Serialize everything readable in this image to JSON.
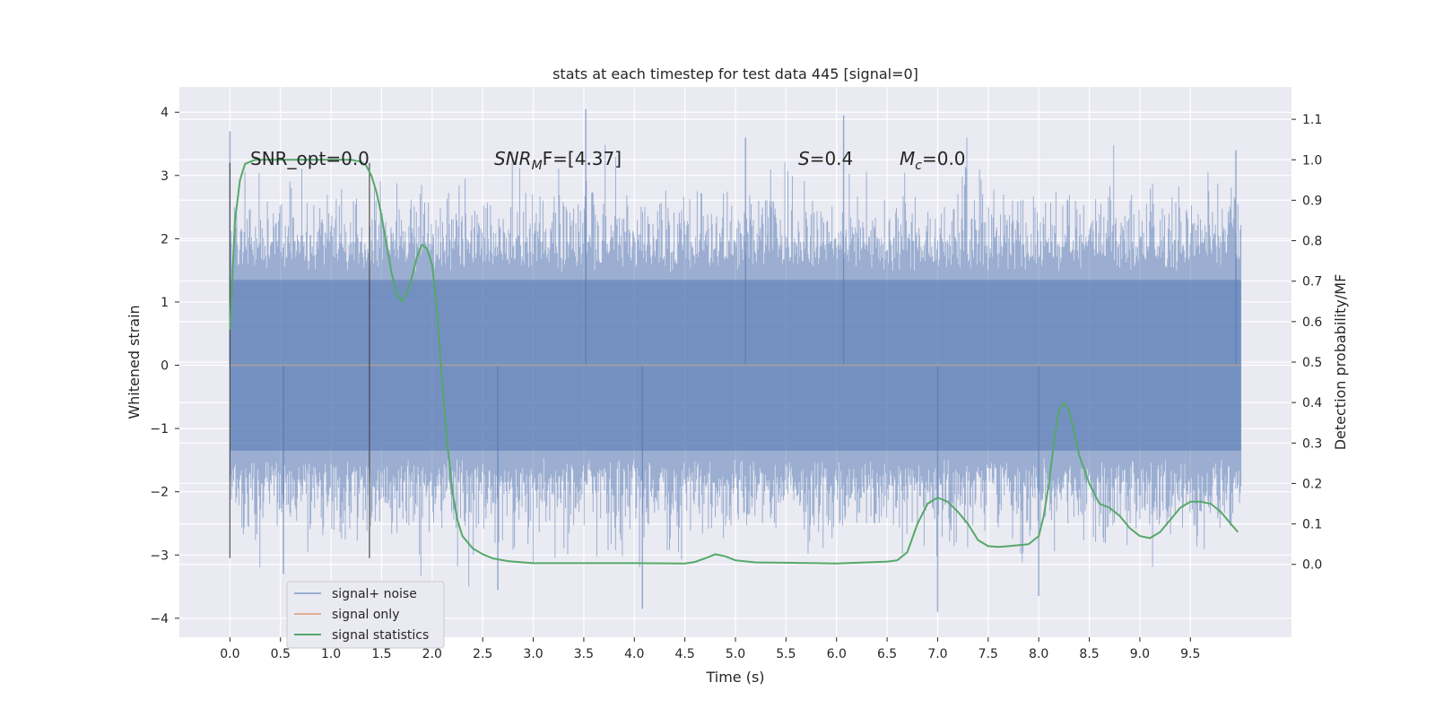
{
  "chart_data": {
    "type": "line",
    "title": "stats at each timestep for test data 445 [signal=0]",
    "xlabel": "Time (s)",
    "ylabel": "Whitened strain",
    "y2label": "Detection probability/MF",
    "xlim": [
      -0.5,
      10.5
    ],
    "ylim": [
      -4.3,
      4.4
    ],
    "y2lim": [
      -0.18,
      1.18
    ],
    "xticks": [
      0.0,
      0.5,
      1.0,
      1.5,
      2.0,
      2.5,
      3.0,
      3.5,
      4.0,
      4.5,
      5.0,
      5.5,
      6.0,
      6.5,
      7.0,
      7.5,
      8.0,
      8.5,
      9.0,
      9.5
    ],
    "xtick_labels": [
      "0.0",
      "0.5",
      "1.0",
      "1.5",
      "2.0",
      "2.5",
      "3.0",
      "3.5",
      "4.0",
      "4.5",
      "5.0",
      "5.5",
      "6.0",
      "6.5",
      "7.0",
      "7.5",
      "8.0",
      "8.5",
      "9.0",
      "9.5"
    ],
    "yticks": [
      4,
      3,
      2,
      1,
      0,
      -1,
      -2,
      -3,
      -4
    ],
    "ytick_labels": [
      "4",
      "3",
      "2",
      "1",
      "0",
      "−1",
      "−2",
      "−3",
      "−4"
    ],
    "y2ticks": [
      1.1,
      1.0,
      0.9,
      0.8,
      0.7,
      0.6,
      0.5,
      0.4,
      0.3,
      0.2,
      0.1,
      0.0
    ],
    "y2tick_labels": [
      "1.1",
      "1.0",
      "0.9",
      "0.8",
      "0.7",
      "0.6",
      "0.5",
      "0.4",
      "0.3",
      "0.2",
      "0.1",
      "0.0"
    ],
    "grid": true,
    "legend_position": "lower-left",
    "vertical_markers": [
      {
        "x": 0.0,
        "y_from": -3.05,
        "y_to": 3.2
      },
      {
        "x": 1.38,
        "y_from": -3.05,
        "y_to": 3.2
      }
    ],
    "annotations": {
      "snr_opt": {
        "prefix": "SNR_opt=",
        "value": "0.0"
      },
      "snr_mf": {
        "base": "SNR",
        "sub": "M",
        "rest": "F=[4.37]"
      },
      "s": {
        "base": "S",
        "rest": "=0.4"
      },
      "mc": {
        "base": "M",
        "sub": "c",
        "rest": "=0.0"
      }
    },
    "series": [
      {
        "name": "signal+ noise",
        "color": "#4c72b0",
        "axis": "left",
        "x_start": 0.0,
        "x_end": 10.0,
        "band_spread": 1.35,
        "notable_peaks": [
          {
            "x": 0.0,
            "y": 3.7
          },
          {
            "x": 3.52,
            "y": 4.05
          },
          {
            "x": 6.07,
            "y": 3.95
          },
          {
            "x": 5.1,
            "y": 3.6
          },
          {
            "x": 0.53,
            "y": -3.3
          },
          {
            "x": 4.08,
            "y": -3.85
          },
          {
            "x": 7.0,
            "y": -3.9
          },
          {
            "x": 8.0,
            "y": -3.65
          },
          {
            "x": 2.65,
            "y": -3.55
          },
          {
            "x": 9.95,
            "y": 3.4
          }
        ]
      },
      {
        "name": "signal only",
        "color": "#dd8452",
        "axis": "left",
        "x": [
          0.0,
          10.0
        ],
        "y": [
          0.0,
          0.0
        ]
      },
      {
        "name": "signal statistics",
        "color": "#55a868",
        "axis": "right",
        "x": [
          0.0,
          0.05,
          0.1,
          0.15,
          0.25,
          0.4,
          0.6,
          0.8,
          1.0,
          1.2,
          1.3,
          1.35,
          1.4,
          1.45,
          1.5,
          1.55,
          1.6,
          1.65,
          1.7,
          1.75,
          1.8,
          1.85,
          1.9,
          1.95,
          2.0,
          2.05,
          2.1,
          2.15,
          2.2,
          2.25,
          2.3,
          2.4,
          2.5,
          2.6,
          2.75,
          2.9,
          3.0,
          3.5,
          4.0,
          4.5,
          4.6,
          4.7,
          4.8,
          4.9,
          5.0,
          5.2,
          5.5,
          5.8,
          6.0,
          6.2,
          6.5,
          6.6,
          6.7,
          6.8,
          6.9,
          7.0,
          7.05,
          7.1,
          7.2,
          7.3,
          7.4,
          7.5,
          7.6,
          7.7,
          7.9,
          8.0,
          8.05,
          8.1,
          8.15,
          8.2,
          8.25,
          8.3,
          8.35,
          8.4,
          8.5,
          8.6,
          8.7,
          8.8,
          8.9,
          9.0,
          9.1,
          9.2,
          9.3,
          9.4,
          9.5,
          9.6,
          9.7,
          9.8,
          9.9,
          9.97
        ],
        "y": [
          0.58,
          0.85,
          0.95,
          0.99,
          1.0,
          1.0,
          1.0,
          1.0,
          1.0,
          1.0,
          0.995,
          0.985,
          0.96,
          0.92,
          0.86,
          0.79,
          0.72,
          0.67,
          0.65,
          0.67,
          0.71,
          0.76,
          0.79,
          0.78,
          0.74,
          0.62,
          0.45,
          0.3,
          0.18,
          0.11,
          0.07,
          0.04,
          0.025,
          0.015,
          0.008,
          0.005,
          0.003,
          0.003,
          0.003,
          0.002,
          0.006,
          0.015,
          0.025,
          0.02,
          0.01,
          0.005,
          0.004,
          0.003,
          0.002,
          0.004,
          0.007,
          0.01,
          0.03,
          0.1,
          0.15,
          0.165,
          0.16,
          0.155,
          0.13,
          0.1,
          0.06,
          0.045,
          0.043,
          0.045,
          0.05,
          0.07,
          0.12,
          0.2,
          0.3,
          0.38,
          0.4,
          0.38,
          0.33,
          0.27,
          0.2,
          0.15,
          0.14,
          0.12,
          0.09,
          0.07,
          0.065,
          0.08,
          0.11,
          0.14,
          0.155,
          0.155,
          0.15,
          0.13,
          0.1,
          0.08
        ]
      }
    ]
  }
}
